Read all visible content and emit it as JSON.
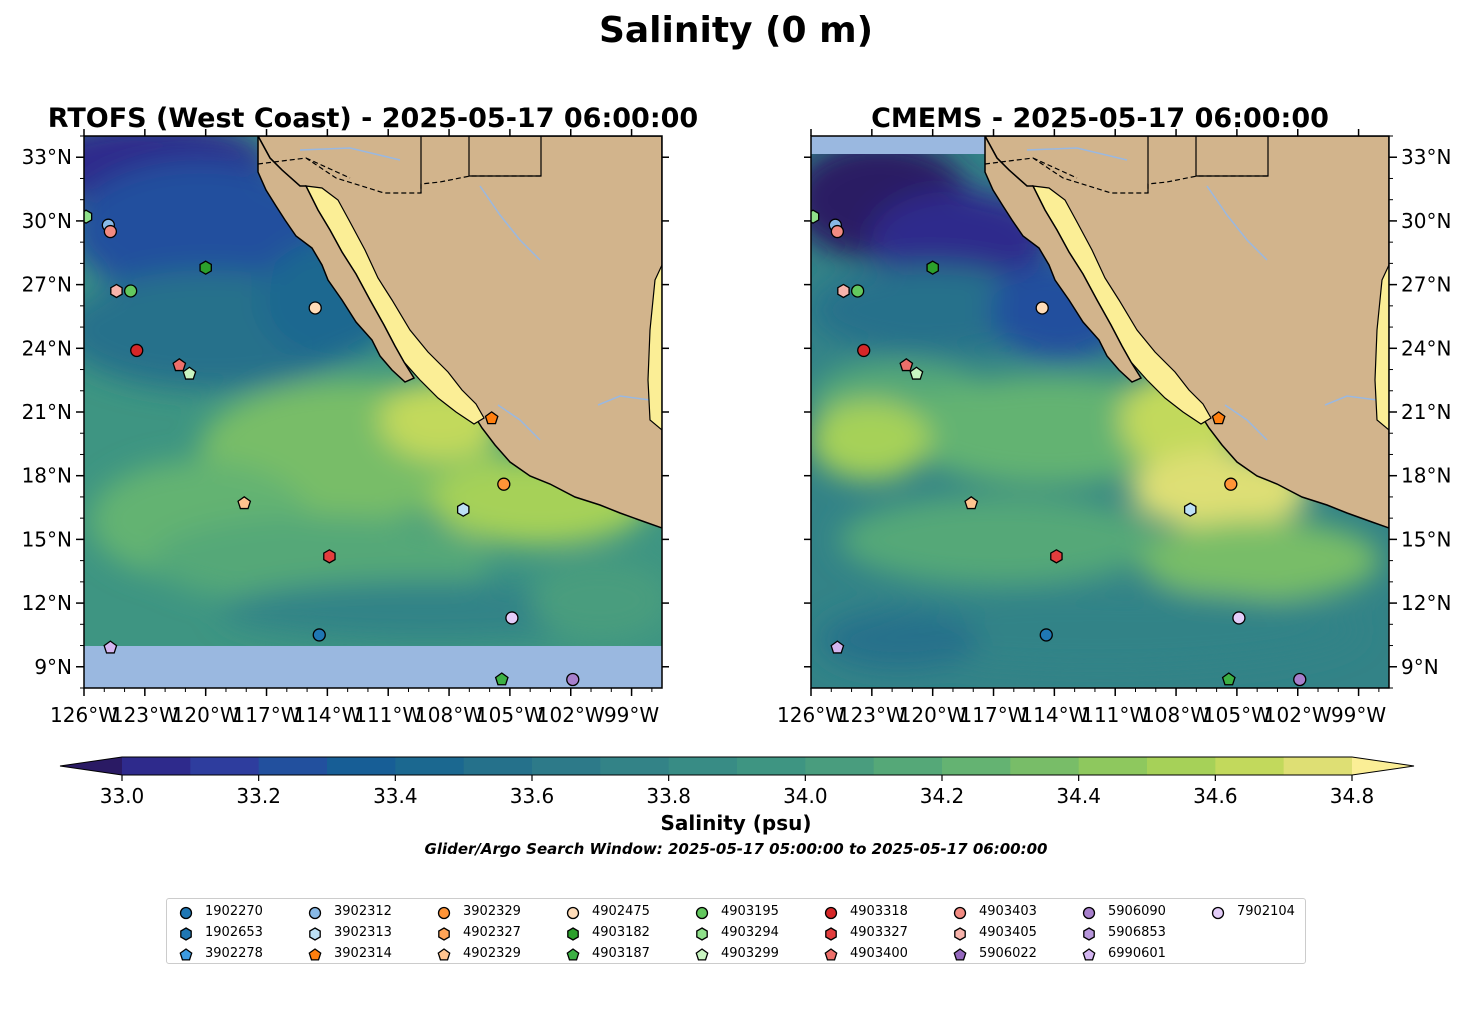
{
  "figure": {
    "suptitle": "Salinity (0 m)",
    "window_text": "Glider/Argo Search Window: 2025-05-17 05:00:00 to 2025-05-17 06:00:00"
  },
  "panels": [
    {
      "title": "RTOFS (West Coast) - 2025-05-17 06:00:00",
      "model": "RTOFS"
    },
    {
      "title": "CMEMS - 2025-05-17 06:00:00",
      "model": "CMEMS"
    }
  ],
  "map": {
    "lon_range": [
      -126,
      -97.5
    ],
    "lat_range": [
      8,
      34
    ],
    "lon_ticks": [
      -126,
      -123,
      -120,
      -117,
      -114,
      -111,
      -108,
      -105,
      -102,
      -99
    ],
    "lon_tick_labels": [
      "126°W",
      "123°W",
      "120°W",
      "117°W",
      "114°W",
      "111°W",
      "108°W",
      "105°W",
      "102°W",
      "99°W"
    ],
    "lat_ticks": [
      9,
      12,
      15,
      18,
      21,
      24,
      27,
      30,
      33
    ],
    "lat_tick_labels": [
      "9°N",
      "12°N",
      "15°N",
      "18°N",
      "21°N",
      "24°N",
      "27°N",
      "30°N",
      "33°N"
    ],
    "land_color": "#d2b48c",
    "nodata_color": "#9ab8e0"
  },
  "colorbar": {
    "label": "Salinity (psu)",
    "min": 32.9,
    "max": 34.9,
    "step": 0.1,
    "tick_values": [
      33.0,
      33.2,
      33.4,
      33.6,
      33.8,
      34.0,
      34.2,
      34.4,
      34.6,
      34.8
    ],
    "tick_labels": [
      "33.0",
      "33.2",
      "33.4",
      "33.6",
      "33.8",
      "34.0",
      "34.2",
      "34.4",
      "34.6",
      "34.8"
    ],
    "colors": [
      "#2a1a64",
      "#2e2a8c",
      "#2e3d9e",
      "#22509e",
      "#175e96",
      "#1b6890",
      "#25718b",
      "#2d7a89",
      "#338387",
      "#388c85",
      "#3e9582",
      "#499d7e",
      "#55a878",
      "#64b372",
      "#78bd68",
      "#8ec85e",
      "#a6d158",
      "#c2d95c",
      "#dedf74",
      "#fbee96"
    ]
  },
  "floats": [
    {
      "id": "1902270",
      "marker": "circle",
      "color": "#1f77b4",
      "lon": -114.4,
      "lat": 10.5
    },
    {
      "id": "1902653",
      "marker": "hexagon",
      "color": "#1f77b4",
      "lon": null,
      "lat": null
    },
    {
      "id": "3902278",
      "marker": "pentagon",
      "color": "#3d9be0",
      "lon": null,
      "lat": null
    },
    {
      "id": "3902312",
      "marker": "circle",
      "color": "#88b9e6",
      "lon": -124.8,
      "lat": 29.8
    },
    {
      "id": "3902313",
      "marker": "hexagon",
      "color": "#bde0f5",
      "lon": -107.3,
      "lat": 16.4
    },
    {
      "id": "3902314",
      "marker": "pentagon",
      "color": "#ff7f0e",
      "lon": -105.9,
      "lat": 20.7
    },
    {
      "id": "3902329",
      "marker": "circle",
      "color": "#ff9437",
      "lon": -105.3,
      "lat": 17.6
    },
    {
      "id": "4902327",
      "marker": "hexagon",
      "color": "#ffa457",
      "lon": null,
      "lat": null
    },
    {
      "id": "4902329",
      "marker": "pentagon",
      "color": "#ffc48f",
      "lon": -118.1,
      "lat": 16.7
    },
    {
      "id": "4902475",
      "marker": "circle",
      "color": "#ffdcb8",
      "lon": -114.6,
      "lat": 25.9
    },
    {
      "id": "4903182",
      "marker": "hexagon",
      "color": "#2ca02c",
      "lon": -120.0,
      "lat": 27.8
    },
    {
      "id": "4903187",
      "marker": "pentagon",
      "color": "#3cb043",
      "lon": -105.4,
      "lat": 8.4
    },
    {
      "id": "4903195",
      "marker": "circle",
      "color": "#63c85e",
      "lon": -123.7,
      "lat": 26.7
    },
    {
      "id": "4903294",
      "marker": "hexagon",
      "color": "#8fe08a",
      "lon": -125.9,
      "lat": 30.2
    },
    {
      "id": "4903299",
      "marker": "pentagon",
      "color": "#c9f5c1",
      "lon": -120.8,
      "lat": 22.8
    },
    {
      "id": "4903318",
      "marker": "circle",
      "color": "#d62728",
      "lon": -123.4,
      "lat": 23.9
    },
    {
      "id": "4903327",
      "marker": "hexagon",
      "color": "#e33d3d",
      "lon": -113.9,
      "lat": 14.2
    },
    {
      "id": "4903400",
      "marker": "pentagon",
      "color": "#ee6f6a",
      "lon": -121.3,
      "lat": 23.2
    },
    {
      "id": "4903403",
      "marker": "circle",
      "color": "#f28b82",
      "lon": -124.7,
      "lat": 29.5
    },
    {
      "id": "4903405",
      "marker": "hexagon",
      "color": "#f7b3ab",
      "lon": -124.4,
      "lat": 26.7
    },
    {
      "id": "5906022",
      "marker": "pentagon",
      "color": "#9467bd",
      "lon": null,
      "lat": null
    },
    {
      "id": "5906090",
      "marker": "circle",
      "color": "#a77fcc",
      "lon": -101.9,
      "lat": 8.4
    },
    {
      "id": "5906853",
      "marker": "hexagon",
      "color": "#b796db",
      "lon": null,
      "lat": null
    },
    {
      "id": "6990601",
      "marker": "pentagon",
      "color": "#d4b6f1",
      "lon": -124.7,
      "lat": 9.9
    },
    {
      "id": "7902104",
      "marker": "circle",
      "color": "#e4cdf9",
      "lon": -104.9,
      "lat": 11.3
    }
  ]
}
